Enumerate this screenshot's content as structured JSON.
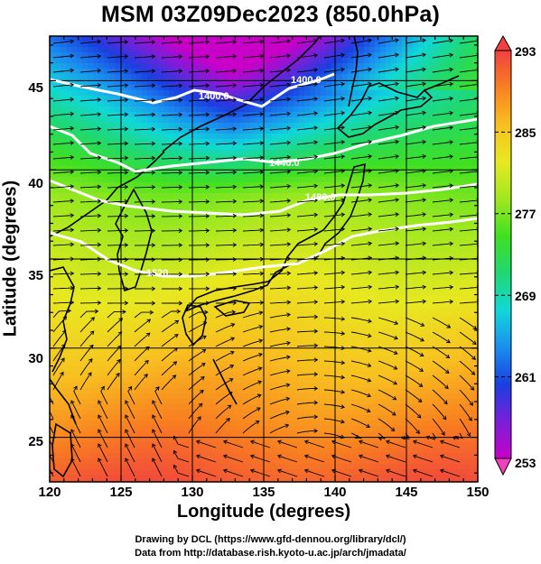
{
  "title": "MSM 03Z09Dec2023 (850.0hPa)",
  "map": {
    "xlabel": "Longitude (degrees)",
    "ylabel": "Latitude  (degrees)",
    "lon_range": [
      120,
      150
    ],
    "lat_range": [
      22.5,
      47.5
    ],
    "lon_ticks": [
      "120",
      "125",
      "130",
      "135",
      "140",
      "145",
      "150"
    ],
    "lat_ticks": [
      "25",
      "30",
      "35",
      "40",
      "45"
    ],
    "lat_tick_values": [
      25,
      30,
      35,
      40,
      45
    ],
    "lon_tick_values": [
      120,
      125,
      130,
      135,
      140,
      145,
      150
    ],
    "contour_labels": [
      "1400.0",
      "1400.0",
      "1440.0",
      "1480.0",
      "1520."
    ],
    "colorbar": {
      "min": 253,
      "max": 293,
      "tick_labels": [
        "293",
        "285",
        "277",
        "269",
        "261",
        "253"
      ],
      "tick_values": [
        293,
        285,
        277,
        269,
        261,
        253
      ],
      "colors": [
        "#c800c8",
        "#7a1fd8",
        "#1a3fe0",
        "#1a8ff0",
        "#10d8d8",
        "#20d870",
        "#40e020",
        "#a0e820",
        "#e8e820",
        "#f8c020",
        "#f88020",
        "#f04040"
      ]
    }
  },
  "credits": {
    "line1": "Drawing by DCL (https://www.gfd-dennou.org/library/dcl/)",
    "line2": "Data from http://database.rish.kyoto-u.ac.jp/arch/jmadata/"
  }
}
